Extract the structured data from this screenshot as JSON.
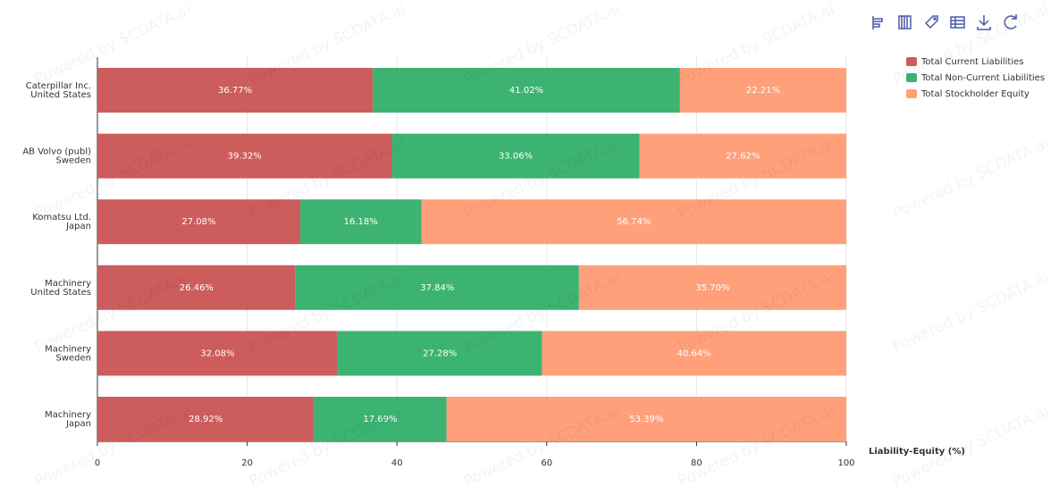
{
  "chart_data": {
    "type": "stacked-bar-horizontal",
    "categories": [
      [
        "Caterpillar Inc.",
        "United States"
      ],
      [
        "AB Volvo (publ)",
        "Sweden"
      ],
      [
        "Komatsu Ltd.",
        "Japan"
      ],
      [
        "Machinery",
        "United States"
      ],
      [
        "Machinery",
        "Sweden"
      ],
      [
        "Machinery",
        "Japan"
      ]
    ],
    "series": [
      {
        "name": "Total Current Liabilities",
        "color": "#cd5c5c",
        "values": [
          36.77,
          39.32,
          27.08,
          26.46,
          32.08,
          28.92
        ],
        "value_labels": [
          "36.77%",
          "39.32%",
          "27.08%",
          "26.46%",
          "32.08%",
          "28.92%"
        ]
      },
      {
        "name": "Total Non-Current Liabilities",
        "color": "#3cb371",
        "values": [
          41.02,
          33.06,
          16.18,
          37.84,
          27.28,
          17.69
        ],
        "value_labels": [
          "41.02%",
          "33.06%",
          "16.18%",
          "37.84%",
          "27.28%",
          "17.69%"
        ]
      },
      {
        "name": "Total Stockholder Equity",
        "color": "#ffa07a",
        "values": [
          22.21,
          27.62,
          56.74,
          35.7,
          40.64,
          53.39
        ],
        "value_labels": [
          "22.21%",
          "27.62%",
          "56.74%",
          "35.70%",
          "40.64%",
          "53.39%"
        ]
      }
    ],
    "xlabel": "Liability-Equity (%)",
    "xlim": [
      0,
      100
    ],
    "xticks": [
      0,
      20,
      40,
      60,
      80,
      100
    ],
    "grid": true,
    "legend": "top-right",
    "watermark": "Powered by SCDATA.ai"
  }
}
